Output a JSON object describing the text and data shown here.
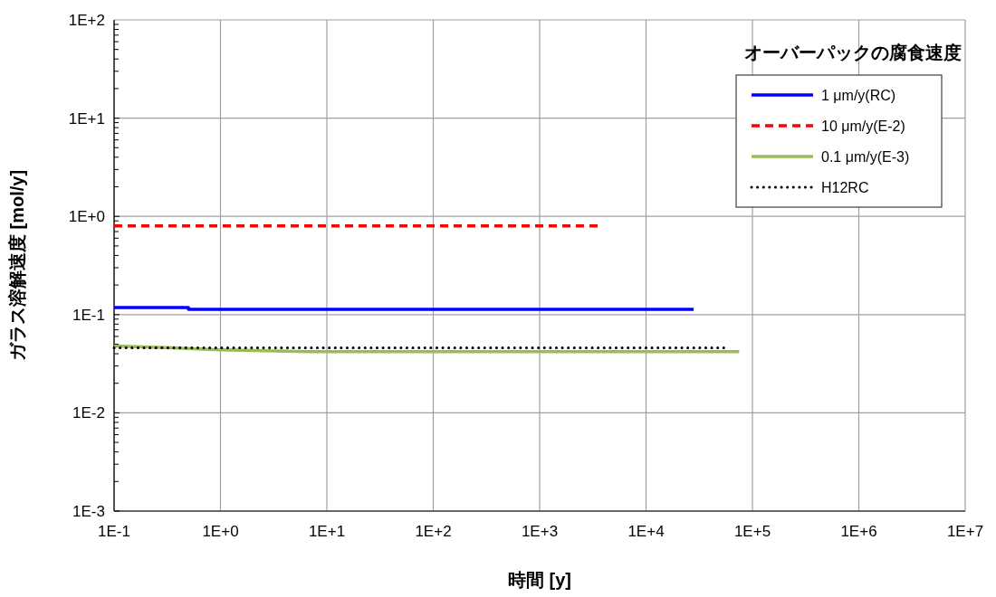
{
  "chart_data": {
    "type": "line",
    "xlabel": "時間 [y]",
    "ylabel": "ガラス溶解速度 [mol/y]",
    "legend_title": "オーバーパックの腐食速度",
    "log": "xy",
    "grid": true,
    "legend": "top right",
    "xlim": [
      0.1,
      10000000
    ],
    "ylim": [
      0.001,
      100
    ],
    "xticks": [
      {
        "value": 0.1,
        "label": "1E-1"
      },
      {
        "value": 1,
        "label": "1E+0"
      },
      {
        "value": 10,
        "label": "1E+1"
      },
      {
        "value": 100,
        "label": "1E+2"
      },
      {
        "value": 1000,
        "label": "1E+3"
      },
      {
        "value": 10000,
        "label": "1E+4"
      },
      {
        "value": 100000,
        "label": "1E+5"
      },
      {
        "value": 1000000,
        "label": "1E+6"
      },
      {
        "value": 10000000,
        "label": "1E+7"
      }
    ],
    "yticks": [
      {
        "value": 0.001,
        "label": "1E-3"
      },
      {
        "value": 0.01,
        "label": "1E-2"
      },
      {
        "value": 0.1,
        "label": "1E-1"
      },
      {
        "value": 1,
        "label": "1E+0"
      },
      {
        "value": 10,
        "label": "1E+1"
      },
      {
        "value": 100,
        "label": "1E+2"
      }
    ],
    "series": [
      {
        "name": "1 μm/y(RC)",
        "color": "#0000ff",
        "line_style": "solid",
        "x": [
          0.1,
          0.5,
          0.5,
          28000
        ],
        "values": [
          0.118,
          0.118,
          0.113,
          0.113
        ]
      },
      {
        "name": "10 μm/y(E-2)",
        "color": "#ff0000",
        "line_style": "dashed",
        "x": [
          0.1,
          3500
        ],
        "values": [
          0.8,
          0.8
        ]
      },
      {
        "name": "0.1 μm/y(E-3)",
        "color": "#9bbb59",
        "line_style": "solid",
        "x": [
          0.1,
          0.35,
          0.85,
          7,
          75000
        ],
        "values": [
          0.048,
          0.046,
          0.044,
          0.042,
          0.042
        ]
      },
      {
        "name": "H12RC",
        "color": "#000000",
        "line_style": "dotted",
        "x": [
          0.1,
          60000
        ],
        "values": [
          0.046,
          0.046
        ]
      }
    ]
  }
}
